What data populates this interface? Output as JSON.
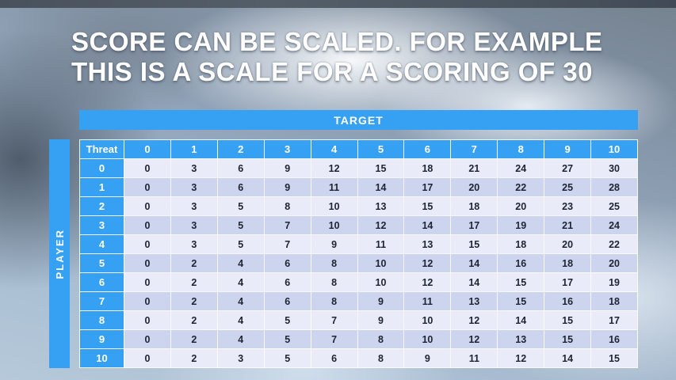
{
  "slide": {
    "title_line1": "SCORE CAN BE SCALED. FOR EXAMPLE",
    "title_line2": "THIS IS A SCALE FOR A SCORING OF 30"
  },
  "table": {
    "target_label": "TARGET",
    "player_label": "PLAYER",
    "threat_label": "Threat",
    "column_headers": [
      "0",
      "1",
      "2",
      "3",
      "4",
      "5",
      "6",
      "7",
      "8",
      "9",
      "10"
    ],
    "rows": [
      {
        "label": "0",
        "values": [
          "0",
          "3",
          "6",
          "9",
          "12",
          "15",
          "18",
          "21",
          "24",
          "27",
          "30"
        ]
      },
      {
        "label": "1",
        "values": [
          "0",
          "3",
          "6",
          "9",
          "11",
          "14",
          "17",
          "20",
          "22",
          "25",
          "28"
        ]
      },
      {
        "label": "2",
        "values": [
          "0",
          "3",
          "5",
          "8",
          "10",
          "13",
          "15",
          "18",
          "20",
          "23",
          "25"
        ]
      },
      {
        "label": "3",
        "values": [
          "0",
          "3",
          "5",
          "7",
          "10",
          "12",
          "14",
          "17",
          "19",
          "21",
          "24"
        ]
      },
      {
        "label": "4",
        "values": [
          "0",
          "3",
          "5",
          "7",
          "9",
          "11",
          "13",
          "15",
          "18",
          "20",
          "22"
        ]
      },
      {
        "label": "5",
        "values": [
          "0",
          "2",
          "4",
          "6",
          "8",
          "10",
          "12",
          "14",
          "16",
          "18",
          "20"
        ]
      },
      {
        "label": "6",
        "values": [
          "0",
          "2",
          "4",
          "6",
          "8",
          "10",
          "12",
          "14",
          "15",
          "17",
          "19"
        ]
      },
      {
        "label": "7",
        "values": [
          "0",
          "2",
          "4",
          "6",
          "8",
          "9",
          "11",
          "13",
          "15",
          "16",
          "18"
        ]
      },
      {
        "label": "8",
        "values": [
          "0",
          "2",
          "4",
          "5",
          "7",
          "9",
          "10",
          "12",
          "14",
          "15",
          "17"
        ]
      },
      {
        "label": "9",
        "values": [
          "0",
          "2",
          "4",
          "5",
          "7",
          "8",
          "10",
          "12",
          "13",
          "15",
          "16"
        ]
      },
      {
        "label": "10",
        "values": [
          "0",
          "2",
          "3",
          "5",
          "6",
          "8",
          "9",
          "11",
          "12",
          "14",
          "15"
        ]
      }
    ]
  },
  "colors": {
    "header_blue": "#36A0F2",
    "row_light": "#E9ECF8",
    "row_dark": "#CDD4EE",
    "text_dark": "#1E2433"
  }
}
